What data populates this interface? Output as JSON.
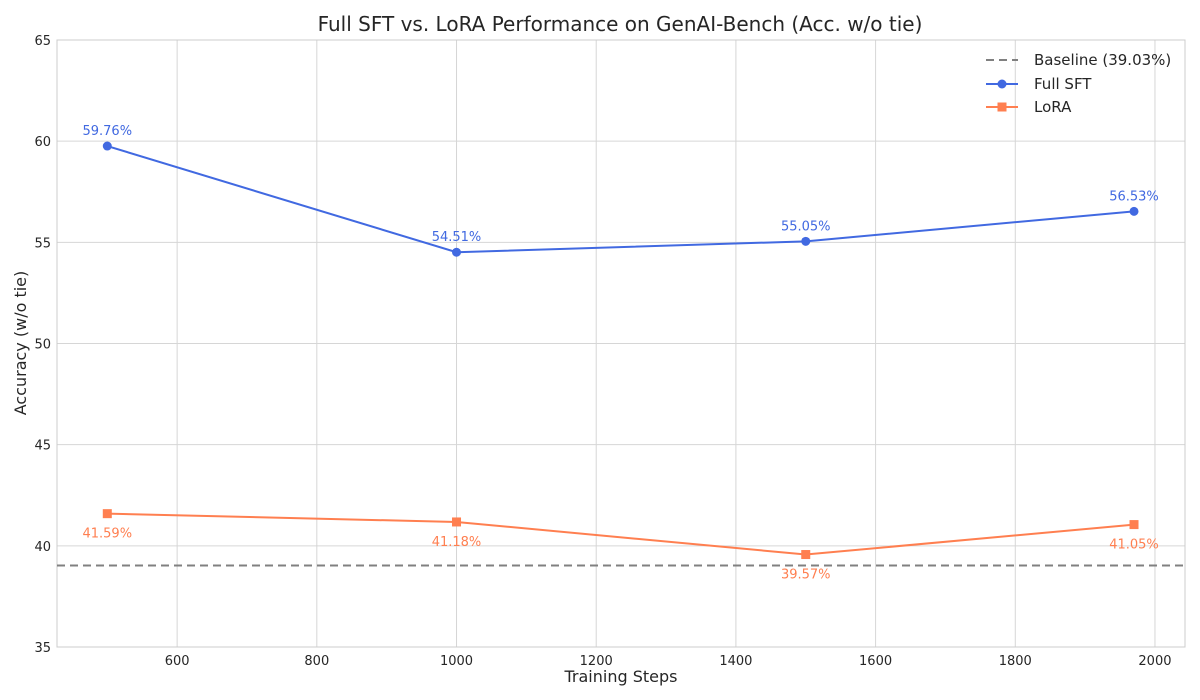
{
  "chart_data": {
    "type": "line",
    "title": "Full SFT vs. LoRA Performance on GenAI-Bench (Acc. w/o tie)",
    "xlabel": "Training Steps",
    "ylabel": "Accuracy (w/o tie)",
    "xlim": [
      428,
      2043
    ],
    "ylim": [
      35,
      65
    ],
    "xticks": [
      600,
      800,
      1000,
      1200,
      1400,
      1600,
      1800,
      2000
    ],
    "yticks": [
      35,
      40,
      45,
      50,
      55,
      60,
      65
    ],
    "grid": true,
    "legend_position": "top-right",
    "baseline": {
      "name": "Baseline (39.03%)",
      "value": 39.03,
      "color": "#808080",
      "style": "dashed"
    },
    "series": [
      {
        "name": "Full SFT",
        "color": "#4169e1",
        "marker": "circle",
        "label_position": "above",
        "x": [
          500,
          1000,
          1500,
          1970
        ],
        "y": [
          59.76,
          54.51,
          55.05,
          56.53
        ],
        "labels": [
          "59.76%",
          "54.51%",
          "55.05%",
          "56.53%"
        ]
      },
      {
        "name": "LoRA",
        "color": "#ff7f50",
        "marker": "square",
        "label_position": "below",
        "x": [
          500,
          1000,
          1500,
          1970
        ],
        "y": [
          41.59,
          41.18,
          39.57,
          41.05
        ],
        "labels": [
          "41.59%",
          "41.18%",
          "39.57%",
          "41.05%"
        ]
      }
    ]
  }
}
